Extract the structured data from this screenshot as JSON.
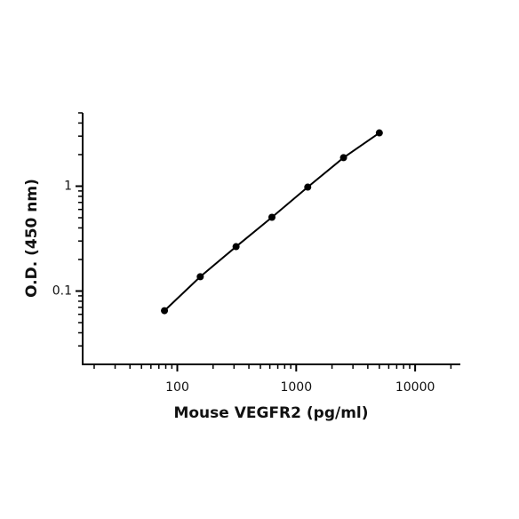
{
  "chart_data": {
    "type": "line",
    "log_x": true,
    "log_y": true,
    "x_label": "Mouse VEGFR2 (pg/ml)",
    "y_label": "O.D. (450 nm)",
    "x": [
      78,
      156,
      312,
      625,
      1250,
      2500,
      5000
    ],
    "values": [
      0.065,
      0.137,
      0.265,
      0.505,
      0.98,
      1.87,
      3.22
    ],
    "color": "#000000",
    "xlim": [
      16,
      24000
    ],
    "ylim": [
      0.02,
      5
    ],
    "xticks": [
      100,
      1000,
      10000
    ],
    "yticks": [
      0.1,
      1
    ],
    "xminorticks": [
      20,
      30,
      40,
      50,
      60,
      70,
      80,
      90,
      200,
      300,
      400,
      500,
      600,
      700,
      800,
      900,
      2000,
      3000,
      4000,
      5000,
      6000,
      7000,
      8000,
      9000,
      20000
    ],
    "yminorticks": [
      0.03,
      0.04,
      0.05,
      0.06,
      0.07,
      0.08,
      0.09,
      0.2,
      0.3,
      0.4,
      0.5,
      0.6,
      0.7,
      0.8,
      0.9,
      2,
      3,
      4,
      5
    ]
  }
}
